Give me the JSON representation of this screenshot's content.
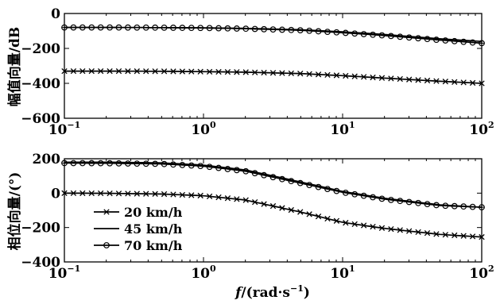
{
  "chart_data": [
    {
      "type": "line",
      "xscale": "log",
      "xlim": [
        0.1,
        100
      ],
      "ylim": [
        -600,
        0
      ],
      "yticks": [
        0,
        -200,
        -400,
        -600
      ],
      "xticks": [
        {
          "base": "10",
          "exp": "−1"
        },
        {
          "base": "10",
          "exp": "0"
        },
        {
          "base": "10",
          "exp": "1"
        },
        {
          "base": "10",
          "exp": "2"
        }
      ],
      "ylabel": "幅值向量/dB",
      "xlabel": "",
      "x": [
        0.1,
        0.2,
        0.5,
        1,
        2,
        5,
        10,
        20,
        50,
        100
      ],
      "series": [
        {
          "name": "20 km/h",
          "values": [
            -330,
            -330,
            -331,
            -333,
            -336,
            -344,
            -356,
            -370,
            -388,
            -400
          ]
        },
        {
          "name": "45 km/h",
          "values": [
            -80,
            -80,
            -81,
            -82,
            -85,
            -93,
            -105,
            -120,
            -145,
            -160
          ]
        },
        {
          "name": "70 km/h",
          "values": [
            -80,
            -80,
            -81,
            -83,
            -87,
            -96,
            -110,
            -126,
            -152,
            -170
          ]
        }
      ]
    },
    {
      "type": "line",
      "xscale": "log",
      "xlim": [
        0.1,
        100
      ],
      "ylim": [
        -400,
        200
      ],
      "yticks": [
        200,
        0,
        -200,
        -400
      ],
      "xticks": [
        {
          "base": "10",
          "exp": "−1"
        },
        {
          "base": "10",
          "exp": "0"
        },
        {
          "base": "10",
          "exp": "1"
        },
        {
          "base": "10",
          "exp": "2"
        }
      ],
      "ylabel": "相位向量/(°)",
      "xlabel": {
        "italic": "f",
        "rest": "/(rad·s",
        "exp": "−1",
        "close": ")"
      },
      "x": [
        0.1,
        0.2,
        0.5,
        1,
        2,
        5,
        10,
        20,
        50,
        100
      ],
      "series": [
        {
          "name": "20 km/h",
          "values": [
            0,
            -1,
            -5,
            -15,
            -40,
            -110,
            -170,
            -205,
            -240,
            -255
          ]
        },
        {
          "name": "45 km/h",
          "values": [
            180,
            180,
            176,
            163,
            135,
            65,
            10,
            -30,
            -68,
            -82
          ]
        },
        {
          "name": "70 km/h",
          "values": [
            175,
            174,
            170,
            157,
            128,
            58,
            5,
            -35,
            -72,
            -82
          ]
        }
      ],
      "legend": {
        "position": "lower-left",
        "entries": [
          "20 km/h",
          "45 km/h",
          "70 km/h"
        ]
      }
    }
  ],
  "colors": {
    "line": "#000000",
    "frame": "#000000",
    "background": "#ffffff"
  }
}
